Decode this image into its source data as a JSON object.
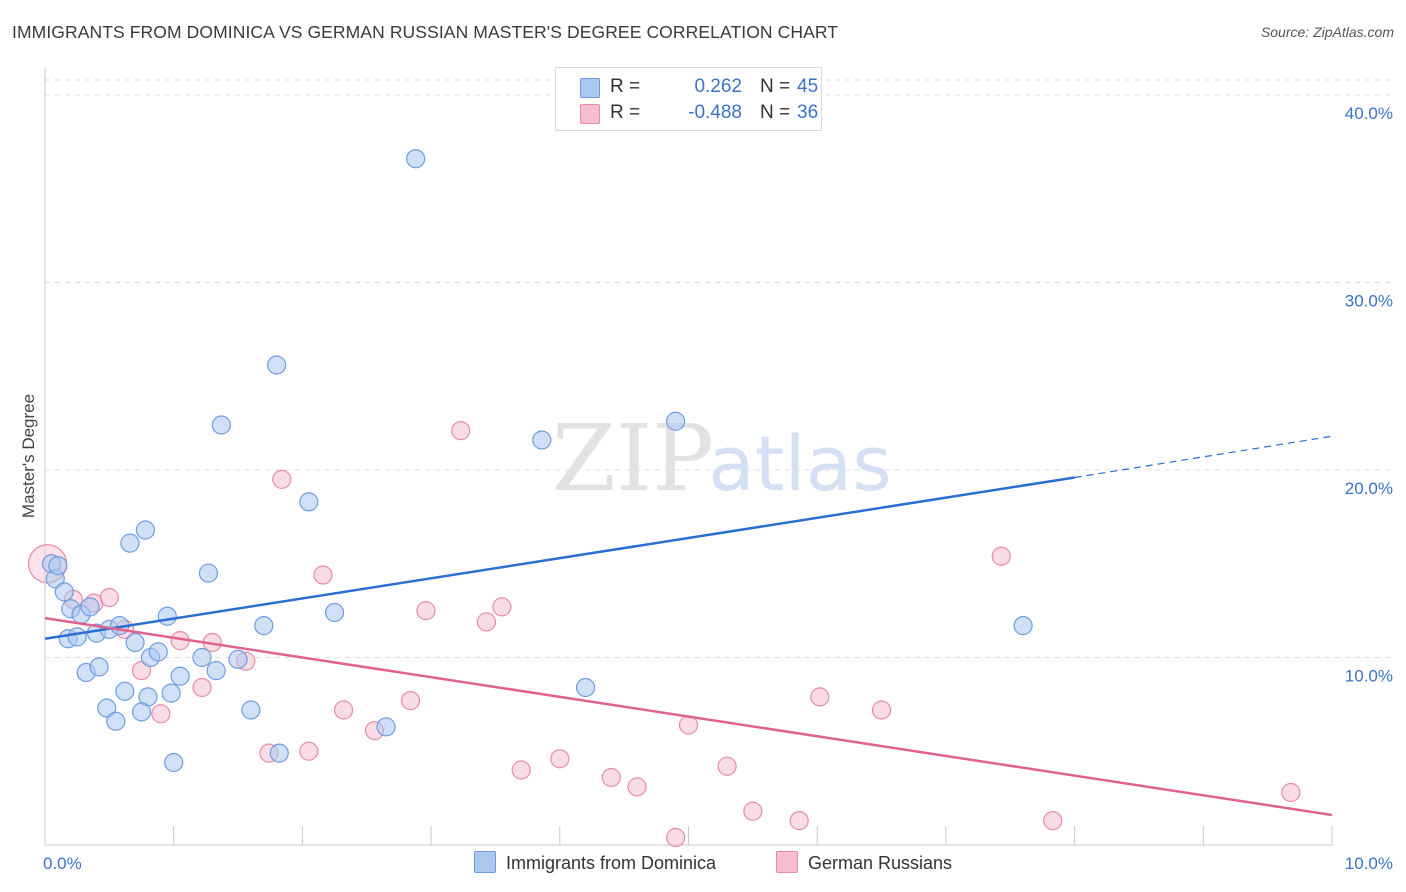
{
  "header": {
    "title": "IMMIGRANTS FROM DOMINICA VS GERMAN RUSSIAN MASTER'S DEGREE CORRELATION CHART",
    "source": "Source: ZipAtlas.com"
  },
  "watermark": {
    "zip": "ZIP",
    "atlas": "atlas"
  },
  "colors": {
    "blue_fill": "#aac8f0",
    "blue_stroke": "#6d9be0",
    "blue_line": "#2b6fd0",
    "pink_fill": "#f6bfd0",
    "pink_stroke": "#e88aa6",
    "pink_line": "#e0628f",
    "grid": "#dddddd",
    "tick_text": "#3b73c4"
  },
  "legend_stats": [
    {
      "r_label": "R =",
      "r_value": "0.262",
      "n_label": "N =",
      "n_value": "45",
      "color": "#aac8f0"
    },
    {
      "r_label": "R =",
      "r_value": "-0.488",
      "n_label": "N =",
      "n_value": "36",
      "color": "#f6bfd0"
    }
  ],
  "chart_data": {
    "type": "scatter",
    "title": "IMMIGRANTS FROM DOMINICA VS GERMAN RUSSIAN MASTER'S DEGREE CORRELATION CHART",
    "xlabel": "",
    "ylabel": "Master's Degree",
    "xlim": [
      0,
      10
    ],
    "ylim": [
      0,
      40.8
    ],
    "x_ticks": [
      0,
      10
    ],
    "x_tick_labels": [
      "0.0%",
      "10.0%"
    ],
    "y_ticks": [
      10,
      20,
      30,
      40
    ],
    "y_tick_labels": [
      "10.0%",
      "20.0%",
      "30.0%",
      "40.0%"
    ],
    "grid": true,
    "legend_position": "bottom",
    "series": [
      {
        "name": "Immigrants from Dominica",
        "color": "#aac8f0",
        "trend": {
          "x0": 0,
          "y0": 11.0,
          "x1": 8.0,
          "y1": 19.6,
          "dash_to_x": 10,
          "dash_to_y": 21.8
        },
        "points": [
          {
            "x": 0.05,
            "y": 15.0
          },
          {
            "x": 0.08,
            "y": 14.2
          },
          {
            "x": 0.15,
            "y": 13.5
          },
          {
            "x": 0.2,
            "y": 12.6
          },
          {
            "x": 0.28,
            "y": 12.3
          },
          {
            "x": 0.35,
            "y": 12.7
          },
          {
            "x": 0.18,
            "y": 11.0
          },
          {
            "x": 0.25,
            "y": 11.1
          },
          {
            "x": 0.4,
            "y": 11.3
          },
          {
            "x": 0.5,
            "y": 11.5
          },
          {
            "x": 0.58,
            "y": 11.7
          },
          {
            "x": 0.32,
            "y": 9.2
          },
          {
            "x": 0.42,
            "y": 9.5
          },
          {
            "x": 0.7,
            "y": 10.8
          },
          {
            "x": 0.82,
            "y": 10.0
          },
          {
            "x": 0.88,
            "y": 10.3
          },
          {
            "x": 0.95,
            "y": 12.2
          },
          {
            "x": 0.62,
            "y": 8.2
          },
          {
            "x": 0.8,
            "y": 7.9
          },
          {
            "x": 0.98,
            "y": 8.1
          },
          {
            "x": 1.05,
            "y": 9.0
          },
          {
            "x": 0.48,
            "y": 7.3
          },
          {
            "x": 0.75,
            "y": 7.1
          },
          {
            "x": 0.55,
            "y": 6.6
          },
          {
            "x": 1.0,
            "y": 4.4
          },
          {
            "x": 0.66,
            "y": 16.1
          },
          {
            "x": 0.78,
            "y": 16.8
          },
          {
            "x": 1.27,
            "y": 14.5
          },
          {
            "x": 1.22,
            "y": 10.0
          },
          {
            "x": 1.33,
            "y": 9.3
          },
          {
            "x": 1.5,
            "y": 9.9
          },
          {
            "x": 1.6,
            "y": 7.2
          },
          {
            "x": 1.7,
            "y": 11.7
          },
          {
            "x": 1.82,
            "y": 4.9
          },
          {
            "x": 1.37,
            "y": 22.4
          },
          {
            "x": 1.8,
            "y": 25.6
          },
          {
            "x": 2.05,
            "y": 18.3
          },
          {
            "x": 2.25,
            "y": 12.4
          },
          {
            "x": 2.65,
            "y": 6.3
          },
          {
            "x": 2.88,
            "y": 36.6
          },
          {
            "x": 3.86,
            "y": 21.6
          },
          {
            "x": 4.2,
            "y": 8.4
          },
          {
            "x": 4.9,
            "y": 22.6
          },
          {
            "x": 7.6,
            "y": 11.7
          },
          {
            "x": 0.1,
            "y": 14.9
          }
        ]
      },
      {
        "name": "German Russians",
        "color": "#f6bfd0",
        "trend": {
          "x0": 0,
          "y0": 12.1,
          "x1": 10,
          "y1": 1.6
        },
        "points": [
          {
            "x": 0.02,
            "y": 15.0
          },
          {
            "x": 0.22,
            "y": 13.1
          },
          {
            "x": 0.38,
            "y": 12.9
          },
          {
            "x": 0.5,
            "y": 13.2
          },
          {
            "x": 0.62,
            "y": 11.5
          },
          {
            "x": 0.75,
            "y": 9.3
          },
          {
            "x": 0.9,
            "y": 7.0
          },
          {
            "x": 1.05,
            "y": 10.9
          },
          {
            "x": 1.22,
            "y": 8.4
          },
          {
            "x": 1.3,
            "y": 10.8
          },
          {
            "x": 1.56,
            "y": 9.8
          },
          {
            "x": 1.74,
            "y": 4.9
          },
          {
            "x": 1.84,
            "y": 19.5
          },
          {
            "x": 2.05,
            "y": 5.0
          },
          {
            "x": 2.16,
            "y": 14.4
          },
          {
            "x": 2.32,
            "y": 7.2
          },
          {
            "x": 2.56,
            "y": 6.1
          },
          {
            "x": 2.84,
            "y": 7.7
          },
          {
            "x": 2.96,
            "y": 12.5
          },
          {
            "x": 3.23,
            "y": 22.1
          },
          {
            "x": 3.43,
            "y": 11.9
          },
          {
            "x": 3.55,
            "y": 12.7
          },
          {
            "x": 3.7,
            "y": 4.0
          },
          {
            "x": 4.0,
            "y": 4.6
          },
          {
            "x": 4.4,
            "y": 3.6
          },
          {
            "x": 4.6,
            "y": 3.1
          },
          {
            "x": 4.9,
            "y": 0.4
          },
          {
            "x": 5.0,
            "y": 6.4
          },
          {
            "x": 5.3,
            "y": 4.2
          },
          {
            "x": 5.5,
            "y": 1.8
          },
          {
            "x": 5.86,
            "y": 1.3
          },
          {
            "x": 6.02,
            "y": 7.9
          },
          {
            "x": 6.5,
            "y": 7.2
          },
          {
            "x": 7.43,
            "y": 15.4
          },
          {
            "x": 7.83,
            "y": 1.3
          },
          {
            "x": 9.68,
            "y": 2.8
          }
        ]
      }
    ]
  }
}
